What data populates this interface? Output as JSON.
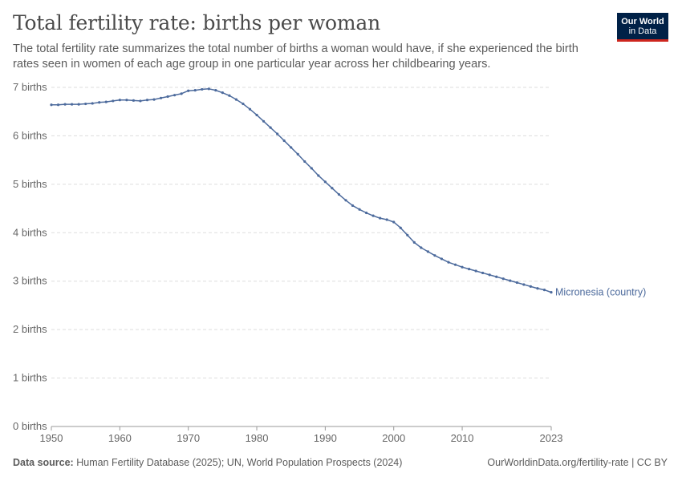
{
  "header": {
    "title": "Total fertility rate: births per woman",
    "subtitle": "The total fertility rate summarizes the total number of births a woman would have, if she experienced the birth rates seen in women of each age group in one particular year across her childbearing years.",
    "logo_line1": "Our World",
    "logo_line2": "in Data"
  },
  "footer": {
    "source_label": "Data source:",
    "source_text": "Human Fertility Database (2025); UN, World Population Prospects (2024)",
    "link_text": "OurWorldinData.org/fertility-rate | CC BY"
  },
  "colors": {
    "series": "#4c6a9c",
    "grid": "#dddddd",
    "axis": "#999999"
  },
  "chart_data": {
    "type": "line",
    "title": "Total fertility rate: births per woman",
    "xlim": [
      1950,
      2023
    ],
    "ylim": [
      0,
      7
    ],
    "x_ticks": [
      {
        "value": 1950,
        "label": "1950"
      },
      {
        "value": 1960,
        "label": "1960"
      },
      {
        "value": 1970,
        "label": "1970"
      },
      {
        "value": 1980,
        "label": "1980"
      },
      {
        "value": 1990,
        "label": "1990"
      },
      {
        "value": 2000,
        "label": "2000"
      },
      {
        "value": 2010,
        "label": "2010"
      },
      {
        "value": 2023,
        "label": "2023"
      }
    ],
    "y_ticks": [
      {
        "value": 0,
        "label": "0 births"
      },
      {
        "value": 1,
        "label": "1 births"
      },
      {
        "value": 2,
        "label": "2 births"
      },
      {
        "value": 3,
        "label": "3 births"
      },
      {
        "value": 4,
        "label": "4 births"
      },
      {
        "value": 5,
        "label": "5 births"
      },
      {
        "value": 6,
        "label": "6 births"
      },
      {
        "value": 7,
        "label": "7 births"
      }
    ],
    "grid": true,
    "series": [
      {
        "name": "Micronesia (country)",
        "x": [
          1950,
          1951,
          1952,
          1953,
          1954,
          1955,
          1956,
          1957,
          1958,
          1959,
          1960,
          1961,
          1962,
          1963,
          1964,
          1965,
          1966,
          1967,
          1968,
          1969,
          1970,
          1971,
          1972,
          1973,
          1974,
          1975,
          1976,
          1977,
          1978,
          1979,
          1980,
          1981,
          1982,
          1983,
          1984,
          1985,
          1986,
          1987,
          1988,
          1989,
          1990,
          1991,
          1992,
          1993,
          1994,
          1995,
          1996,
          1997,
          1998,
          1999,
          2000,
          2001,
          2002,
          2003,
          2004,
          2005,
          2006,
          2007,
          2008,
          2009,
          2010,
          2011,
          2012,
          2013,
          2014,
          2015,
          2016,
          2017,
          2018,
          2019,
          2020,
          2021,
          2022,
          2023
        ],
        "values": [
          6.64,
          6.64,
          6.65,
          6.65,
          6.65,
          6.66,
          6.67,
          6.69,
          6.7,
          6.72,
          6.74,
          6.74,
          6.73,
          6.72,
          6.74,
          6.75,
          6.78,
          6.81,
          6.84,
          6.87,
          6.93,
          6.94,
          6.96,
          6.97,
          6.94,
          6.89,
          6.83,
          6.75,
          6.66,
          6.55,
          6.43,
          6.3,
          6.17,
          6.04,
          5.9,
          5.76,
          5.62,
          5.47,
          5.33,
          5.18,
          5.05,
          4.92,
          4.79,
          4.67,
          4.56,
          4.48,
          4.41,
          4.35,
          4.3,
          4.27,
          4.22,
          4.1,
          3.95,
          3.8,
          3.69,
          3.61,
          3.53,
          3.46,
          3.39,
          3.34,
          3.29,
          3.25,
          3.21,
          3.17,
          3.13,
          3.09,
          3.05,
          3.01,
          2.97,
          2.93,
          2.89,
          2.85,
          2.82,
          2.77
        ]
      }
    ]
  }
}
